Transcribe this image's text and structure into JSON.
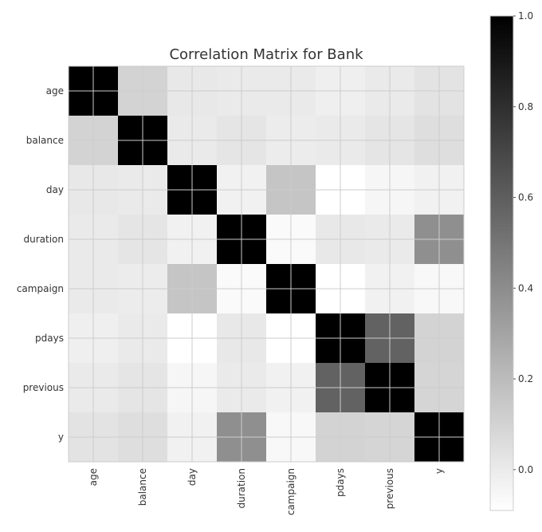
{
  "chart_data": {
    "type": "heatmap",
    "title": "Correlation Matrix for Bank",
    "row_labels": [
      "age",
      "balance",
      "day",
      "duration",
      "campaign",
      "pdays",
      "previous",
      "y"
    ],
    "col_labels": [
      "age",
      "balance",
      "day",
      "duration",
      "campaign",
      "pdays",
      "previous",
      "y"
    ],
    "values": [
      [
        1.0,
        0.1,
        0.01,
        0.0,
        0.0,
        -0.02,
        0.0,
        0.03
      ],
      [
        0.1,
        1.0,
        0.0,
        0.02,
        -0.01,
        0.0,
        0.02,
        0.05
      ],
      [
        0.01,
        0.0,
        1.0,
        -0.03,
        0.16,
        -0.09,
        -0.05,
        -0.03
      ],
      [
        0.0,
        0.02,
        -0.03,
        1.0,
        -0.07,
        0.01,
        0.0,
        0.39
      ],
      [
        0.0,
        -0.01,
        0.16,
        -0.07,
        1.0,
        -0.09,
        -0.03,
        -0.06
      ],
      [
        -0.02,
        0.0,
        -0.09,
        0.01,
        -0.09,
        1.0,
        0.58,
        0.1
      ],
      [
        0.0,
        0.02,
        -0.05,
        0.0,
        -0.03,
        0.58,
        1.0,
        0.09
      ],
      [
        0.03,
        0.05,
        -0.03,
        0.39,
        -0.06,
        0.1,
        0.09,
        1.0
      ]
    ],
    "colorbar": {
      "range": [
        -0.09,
        1.0
      ],
      "ticks": [
        0.0,
        0.2,
        0.4,
        0.6,
        0.8,
        1.0
      ],
      "tick_labels": [
        "0.0",
        "0.2",
        "0.4",
        "0.6",
        "0.8",
        "1.0"
      ],
      "colormap": "Greys"
    },
    "grid": true
  }
}
